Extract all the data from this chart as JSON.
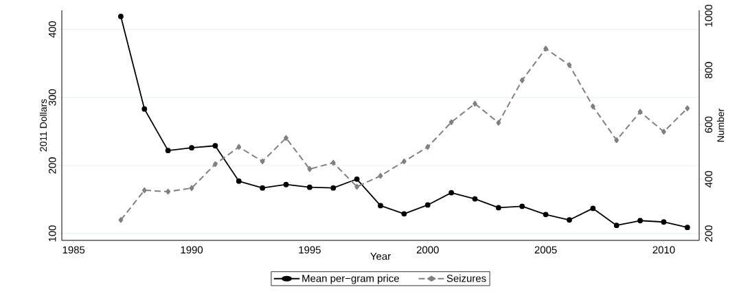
{
  "chart_data": {
    "type": "line",
    "xlabel": "Year",
    "ylabel": "2011 Dollars",
    "y2label": "Number",
    "x": [
      1987,
      1988,
      1989,
      1990,
      1991,
      1992,
      1993,
      1994,
      1995,
      1996,
      1997,
      1998,
      1999,
      2000,
      2001,
      2002,
      2003,
      2004,
      2005,
      2006,
      2007,
      2008,
      2009,
      2010,
      2011
    ],
    "xlim": [
      1984.5,
      2011.5
    ],
    "xticks": [
      1985,
      1990,
      1995,
      2000,
      2005,
      2010
    ],
    "ylim": [
      90,
      428
    ],
    "yticks": [
      100,
      200,
      300,
      400
    ],
    "y2lim": [
      175,
      1020
    ],
    "y2ticks": [
      200,
      400,
      600,
      800,
      1000
    ],
    "grid": "y",
    "legend": "bottom",
    "series": [
      {
        "name": "Mean per−gram price",
        "color": "#000000",
        "marker": "circle",
        "line_style": "solid",
        "values": [
          419,
          283,
          222,
          226,
          229,
          177,
          167,
          172,
          168,
          167,
          180,
          141,
          129,
          142,
          160,
          151,
          138,
          140,
          128,
          120,
          137,
          112,
          119,
          117,
          109
        ]
      },
      {
        "name": "Seizures",
        "color": "#808080",
        "marker": "diamond",
        "line_style": "dashed",
        "axis": "y2",
        "values": [
          250,
          359,
          354,
          367,
          455,
          518,
          465,
          551,
          437,
          460,
          372,
          412,
          465,
          518,
          609,
          677,
          607,
          763,
          879,
          819,
          667,
          543,
          647,
          574,
          660
        ]
      }
    ]
  }
}
